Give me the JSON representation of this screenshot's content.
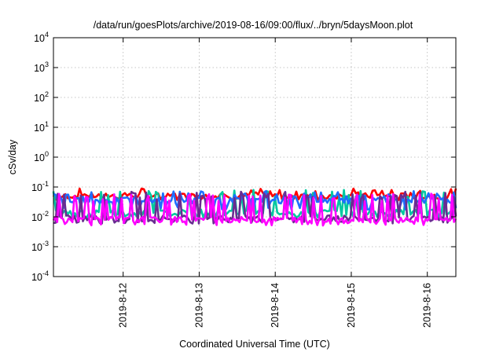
{
  "chart_data": {
    "type": "line",
    "title": "/data/run/goesPlots/archive/2019-08-16/09:00/flux/../bryn/5daysMoon.plot",
    "xlabel": "Coordinated Universal Time (UTC)",
    "ylabel": "cSv/day",
    "yscale": "log",
    "ylim": [
      0.0001,
      10000
    ],
    "xlim": [
      "2019-08-11T02:00",
      "2019-08-16T09:00"
    ],
    "grid": true,
    "legend": "none",
    "y_ticks": [
      {
        "value": 10000,
        "base": "10",
        "exp": "4"
      },
      {
        "value": 1000,
        "base": "10",
        "exp": "3"
      },
      {
        "value": 100,
        "base": "10",
        "exp": "2"
      },
      {
        "value": 10,
        "base": "10",
        "exp": "1"
      },
      {
        "value": 1,
        "base": "10",
        "exp": "0"
      },
      {
        "value": 0.1,
        "base": "10",
        "exp": "-1"
      },
      {
        "value": 0.01,
        "base": "10",
        "exp": "-2"
      },
      {
        "value": 0.001,
        "base": "10",
        "exp": "-3"
      },
      {
        "value": 0.0001,
        "base": "10",
        "exp": "-4"
      }
    ],
    "x_ticks": [
      {
        "value": "2019-08-12T00:00",
        "label": "2019-8-12"
      },
      {
        "value": "2019-08-13T00:00",
        "label": "2019-8-13"
      },
      {
        "value": "2019-08-14T00:00",
        "label": "2019-8-14"
      },
      {
        "value": "2019-08-15T00:00",
        "label": "2019-8-15"
      },
      {
        "value": "2019-08-16T00:00",
        "label": "2019-8-16"
      }
    ],
    "series": [
      {
        "color": "#ff0000",
        "base": 0.05,
        "spike": 0.09,
        "low": 0.042,
        "spikes_per_day": 16
      },
      {
        "color": "#00c8a0",
        "base": 0.014,
        "spike": 0.08,
        "low": 0.011,
        "spikes_per_day": 16
      },
      {
        "color": "#1e6eff",
        "base": 0.035,
        "spike": 0.075,
        "low": 0.02,
        "spikes_per_day": 18
      },
      {
        "color": "#6a2c91",
        "base": 0.009,
        "spike": 0.07,
        "low": 0.007,
        "spikes_per_day": 18
      },
      {
        "color": "#ff00ff",
        "base": 0.008,
        "spike": 0.06,
        "low": 0.006,
        "spikes_per_day": 20
      }
    ]
  }
}
